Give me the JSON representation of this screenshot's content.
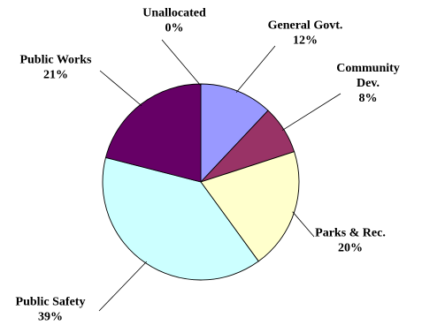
{
  "chart_data": {
    "type": "pie",
    "title": "",
    "slices": [
      {
        "label": [
          "General Govt."
        ],
        "percent_label": "12%",
        "value": 12,
        "color": "#9999ff"
      },
      {
        "label": [
          "Community",
          "Dev."
        ],
        "percent_label": "8%",
        "value": 8,
        "color": "#993366"
      },
      {
        "label": [
          "Parks & Rec."
        ],
        "percent_label": "20%",
        "value": 20,
        "color": "#ffffcc"
      },
      {
        "label": [
          "Public Safety"
        ],
        "percent_label": "39%",
        "value": 39,
        "color": "#ccffff"
      },
      {
        "label": [
          "Public Works"
        ],
        "percent_label": "21%",
        "value": 21,
        "color": "#660066"
      },
      {
        "label": [
          "Unallocated"
        ],
        "percent_label": "0%",
        "value": 0,
        "color": "#ffffff"
      }
    ],
    "start_angle_deg": 0,
    "direction": "clockwise"
  }
}
